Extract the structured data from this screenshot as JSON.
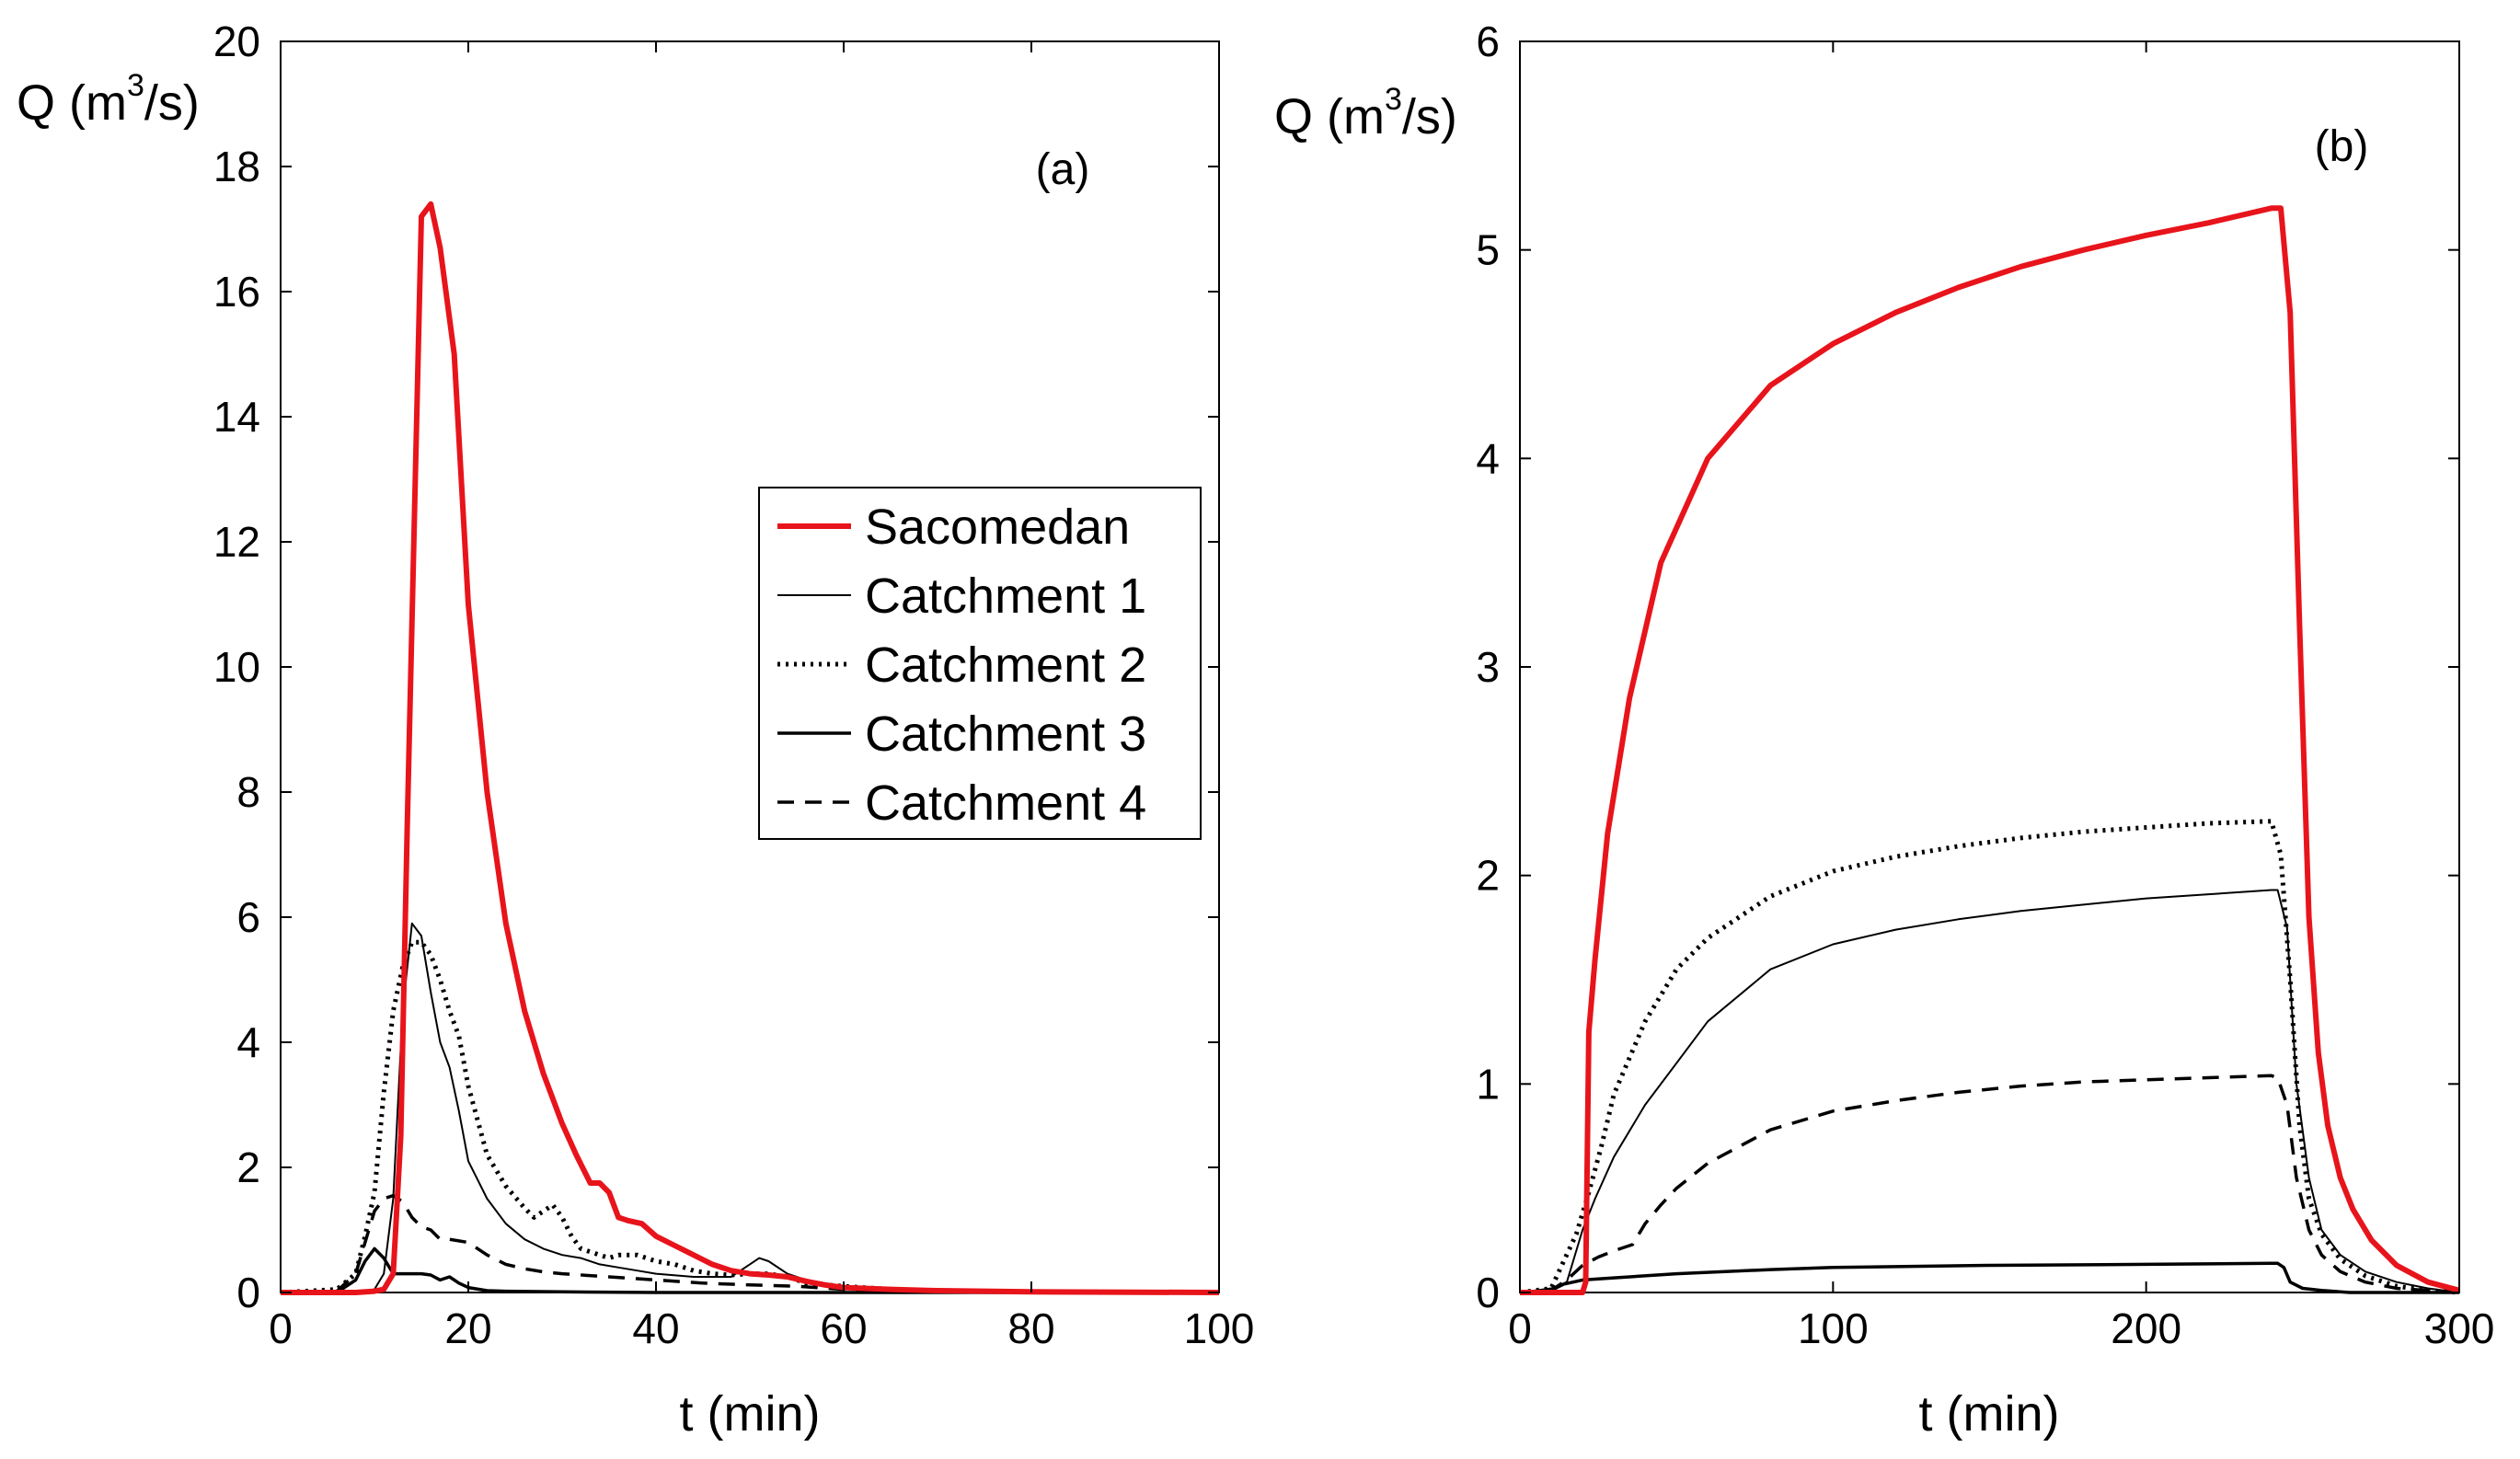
{
  "chart_data": [
    {
      "type": "line",
      "panel_label": "(a)",
      "xlabel": "t (min)",
      "ylabel": {
        "main": "Q (m",
        "sup": "3",
        "tail": "/s)"
      },
      "xlim": [
        0,
        100
      ],
      "ylim": [
        0,
        20
      ],
      "xticks": [
        "0",
        "20",
        "40",
        "60",
        "80",
        "100"
      ],
      "yticks": [
        "0",
        "2",
        "4",
        "6",
        "8",
        "10",
        "12",
        "14",
        "16",
        "18",
        "20"
      ],
      "legend": {
        "position": "center-right"
      },
      "series": [
        {
          "name": "Sacomedan",
          "color": "#e8141b",
          "style": "solid-thick",
          "x": [
            0,
            8,
            10,
            11,
            12,
            12.8,
            13.5,
            14.2,
            15,
            16,
            17,
            18.5,
            20,
            22,
            24,
            26,
            28,
            30,
            31.5,
            33,
            34,
            35,
            36,
            37,
            38.5,
            40,
            42,
            44,
            46,
            48,
            50,
            52,
            54,
            56,
            58,
            60,
            65,
            70,
            80,
            100
          ],
          "y": [
            0,
            0,
            0.02,
            0.05,
            0.3,
            2.5,
            7.5,
            12.0,
            17.2,
            17.4,
            16.7,
            15.0,
            11.0,
            8.0,
            5.9,
            4.5,
            3.5,
            2.7,
            2.2,
            1.75,
            1.75,
            1.6,
            1.2,
            1.15,
            1.1,
            0.9,
            0.75,
            0.6,
            0.45,
            0.35,
            0.3,
            0.28,
            0.25,
            0.18,
            0.12,
            0.08,
            0.05,
            0.03,
            0.01,
            0
          ]
        },
        {
          "name": "Catchment 1",
          "color": "#000000",
          "style": "thin",
          "x": [
            0,
            8,
            10,
            11,
            12,
            13,
            14,
            15,
            16,
            17,
            18,
            19,
            20,
            21,
            22,
            24,
            26,
            28,
            30,
            32,
            34,
            36,
            38,
            40,
            44,
            48,
            50,
            51,
            52,
            54,
            56,
            60,
            65,
            100
          ],
          "y": [
            0,
            0,
            0.05,
            0.3,
            1.5,
            4.5,
            5.9,
            5.7,
            4.8,
            4.0,
            3.6,
            2.9,
            2.1,
            1.8,
            1.5,
            1.1,
            0.85,
            0.7,
            0.6,
            0.55,
            0.45,
            0.4,
            0.35,
            0.3,
            0.25,
            0.25,
            0.45,
            0.55,
            0.5,
            0.3,
            0.2,
            0.1,
            0.05,
            0
          ]
        },
        {
          "name": "Catchment 2",
          "color": "#000000",
          "style": "dotted",
          "x": [
            0,
            6,
            8,
            9,
            10,
            11,
            12,
            13,
            14,
            15,
            16,
            17,
            18,
            19,
            20,
            22,
            24,
            26,
            27,
            28,
            29,
            30,
            31,
            32,
            33,
            34,
            35,
            36,
            38,
            40,
            42,
            44,
            46,
            48,
            50,
            52,
            54,
            56,
            60,
            65,
            70,
            100
          ],
          "y": [
            0,
            0.05,
            0.3,
            0.9,
            1.6,
            3.2,
            4.5,
            5.2,
            5.6,
            5.6,
            5.4,
            5.0,
            4.5,
            4.1,
            3.3,
            2.2,
            1.7,
            1.35,
            1.2,
            1.3,
            1.4,
            1.2,
            0.9,
            0.7,
            0.65,
            0.6,
            0.55,
            0.6,
            0.6,
            0.5,
            0.45,
            0.35,
            0.3,
            0.28,
            0.3,
            0.3,
            0.25,
            0.15,
            0.1,
            0.05,
            0.02,
            0
          ]
        },
        {
          "name": "Catchment 3",
          "color": "#000000",
          "style": "solid",
          "x": [
            0,
            6,
            8,
            9,
            10,
            11,
            12,
            13,
            14,
            15,
            16,
            17,
            18,
            19,
            20,
            22,
            24,
            30,
            40,
            100
          ],
          "y": [
            0,
            0,
            0.2,
            0.5,
            0.7,
            0.55,
            0.3,
            0.3,
            0.3,
            0.3,
            0.28,
            0.2,
            0.25,
            0.15,
            0.08,
            0.03,
            0.02,
            0.01,
            0,
            0
          ]
        },
        {
          "name": "Catchment 4",
          "color": "#000000",
          "style": "dashed",
          "x": [
            0,
            6,
            8,
            9,
            10,
            11,
            12,
            13,
            14,
            15,
            16,
            17,
            18,
            20,
            22,
            24,
            26,
            28,
            30,
            35,
            40,
            45,
            50,
            55,
            60,
            65,
            100
          ],
          "y": [
            0,
            0.02,
            0.3,
            0.8,
            1.3,
            1.5,
            1.55,
            1.45,
            1.2,
            1.05,
            1.0,
            0.85,
            0.85,
            0.8,
            0.6,
            0.45,
            0.38,
            0.33,
            0.3,
            0.25,
            0.2,
            0.15,
            0.12,
            0.1,
            0.05,
            0.02,
            0
          ]
        }
      ]
    },
    {
      "type": "line",
      "panel_label": "(b)",
      "xlabel": "t (min)",
      "ylabel": {
        "main": "Q (m",
        "sup": "3",
        "tail": "/s)"
      },
      "xlim": [
        0,
        300
      ],
      "ylim": [
        0,
        6
      ],
      "xticks": [
        "0",
        "100",
        "200",
        "300"
      ],
      "yticks": [
        "0",
        "1",
        "2",
        "3",
        "4",
        "5",
        "6"
      ],
      "series": [
        {
          "name": "Sacomedan",
          "color": "#e8141b",
          "style": "solid-thick",
          "x": [
            0,
            20,
            21,
            22,
            24,
            28,
            35,
            45,
            60,
            80,
            100,
            120,
            140,
            160,
            180,
            200,
            220,
            240,
            243,
            246,
            249,
            252,
            255,
            258,
            262,
            266,
            272,
            280,
            290,
            300
          ],
          "y": [
            0,
            0,
            0.05,
            1.25,
            1.6,
            2.2,
            2.85,
            3.5,
            4.0,
            4.35,
            4.55,
            4.7,
            4.82,
            4.92,
            5.0,
            5.07,
            5.13,
            5.2,
            5.2,
            4.7,
            3.2,
            1.8,
            1.15,
            0.8,
            0.55,
            0.4,
            0.25,
            0.13,
            0.05,
            0.01
          ]
        },
        {
          "name": "Catchment 1",
          "color": "#000000",
          "style": "thin",
          "x": [
            0,
            10,
            15,
            20,
            24,
            30,
            40,
            50,
            60,
            80,
            100,
            120,
            140,
            160,
            180,
            200,
            220,
            240,
            242,
            245,
            248,
            252,
            256,
            262,
            270,
            280,
            290,
            300
          ],
          "y": [
            0,
            0.02,
            0.05,
            0.3,
            0.45,
            0.65,
            0.9,
            1.1,
            1.3,
            1.55,
            1.67,
            1.74,
            1.79,
            1.83,
            1.86,
            1.89,
            1.91,
            1.93,
            1.93,
            1.75,
            1.0,
            0.55,
            0.3,
            0.18,
            0.1,
            0.05,
            0.02,
            0
          ]
        },
        {
          "name": "Catchment 2",
          "color": "#000000",
          "style": "dotted",
          "x": [
            0,
            10,
            14,
            18,
            22,
            26,
            30,
            40,
            50,
            60,
            80,
            100,
            120,
            140,
            160,
            180,
            200,
            220,
            240,
            243,
            246,
            249,
            252,
            256,
            262,
            270,
            280,
            290,
            300
          ],
          "y": [
            0,
            0.02,
            0.15,
            0.28,
            0.48,
            0.7,
            0.95,
            1.3,
            1.55,
            1.7,
            1.9,
            2.02,
            2.09,
            2.14,
            2.18,
            2.21,
            2.23,
            2.25,
            2.26,
            2.1,
            1.5,
            0.8,
            0.45,
            0.28,
            0.16,
            0.08,
            0.03,
            0.01,
            0
          ]
        },
        {
          "name": "Catchment 3",
          "color": "#000000",
          "style": "solid",
          "x": [
            0,
            10,
            14,
            20,
            30,
            50,
            80,
            100,
            150,
            200,
            240,
            242,
            244,
            246,
            250,
            256,
            265,
            300
          ],
          "y": [
            0,
            0.01,
            0.04,
            0.06,
            0.07,
            0.09,
            0.11,
            0.12,
            0.13,
            0.135,
            0.14,
            0.14,
            0.12,
            0.05,
            0.02,
            0.01,
            0,
            0
          ]
        },
        {
          "name": "Catchment 4",
          "color": "#000000",
          "style": "dashed",
          "x": [
            0,
            10,
            15,
            20,
            25,
            30,
            36,
            40,
            45,
            50,
            60,
            80,
            100,
            120,
            140,
            160,
            180,
            200,
            220,
            240,
            242,
            245,
            248,
            252,
            256,
            262,
            270,
            280,
            300
          ],
          "y": [
            0,
            0.01,
            0.06,
            0.13,
            0.17,
            0.2,
            0.23,
            0.33,
            0.42,
            0.5,
            0.62,
            0.78,
            0.87,
            0.92,
            0.96,
            0.99,
            1.01,
            1.02,
            1.03,
            1.04,
            1.03,
            0.9,
            0.55,
            0.3,
            0.18,
            0.1,
            0.05,
            0.02,
            0
          ]
        }
      ]
    }
  ]
}
